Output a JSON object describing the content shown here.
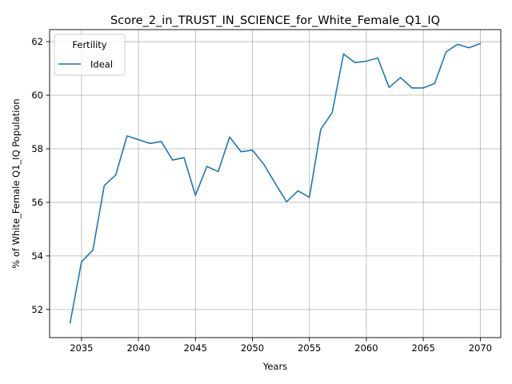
{
  "chart_data": {
    "type": "line",
    "title": "Score_2_in_TRUST_IN_SCIENCE_for_White_Female_Q1_IQ",
    "xlabel": "Years",
    "ylabel": "% of White_Female Q1_IQ Population",
    "xlim": [
      2032.2,
      2071.8
    ],
    "ylim": [
      50.95,
      62.45
    ],
    "x_ticks": [
      2035,
      2040,
      2045,
      2050,
      2055,
      2060,
      2065,
      2070
    ],
    "y_ticks": [
      52,
      54,
      56,
      58,
      60,
      62
    ],
    "grid": true,
    "legend": {
      "title": "Fertility",
      "position": "top-left"
    },
    "series": [
      {
        "name": "Ideal",
        "color": "#1f77b4",
        "x": [
          2034,
          2035,
          2036,
          2037,
          2038,
          2039,
          2040,
          2041,
          2042,
          2043,
          2044,
          2045,
          2046,
          2047,
          2048,
          2049,
          2050,
          2051,
          2052,
          2053,
          2054,
          2055,
          2056,
          2057,
          2058,
          2059,
          2060,
          2061,
          2062,
          2063,
          2064,
          2065,
          2066,
          2067,
          2068,
          2069,
          2070
        ],
        "y": [
          51.5,
          53.78,
          54.22,
          56.63,
          57.02,
          58.48,
          58.34,
          58.2,
          58.27,
          57.58,
          57.67,
          56.26,
          57.34,
          57.15,
          58.44,
          57.89,
          57.95,
          57.42,
          56.71,
          56.02,
          56.43,
          56.19,
          58.73,
          59.35,
          61.54,
          61.22,
          61.27,
          61.39,
          60.29,
          60.66,
          60.27,
          60.27,
          60.44,
          61.62,
          61.9,
          61.77,
          61.93
        ]
      }
    ]
  }
}
